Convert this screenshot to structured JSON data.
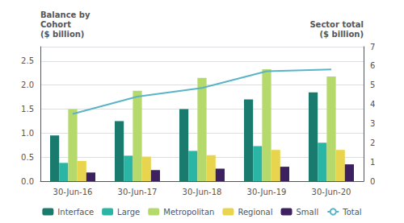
{
  "chart_data": {
    "type": "bar",
    "categories": [
      "30-Jun-16",
      "30-Jun-17",
      "30-Jun-18",
      "30-Jun-19",
      "30-Jun-20"
    ],
    "series": [
      {
        "name": "Interface",
        "color": "#1a7a6e",
        "values": [
          0.95,
          1.25,
          1.5,
          1.7,
          1.85
        ]
      },
      {
        "name": "Large",
        "color": "#2ab5a5",
        "values": [
          0.38,
          0.53,
          0.63,
          0.73,
          0.8
        ]
      },
      {
        "name": "Metropolitan",
        "color": "#b5d96b",
        "values": [
          1.5,
          1.88,
          2.15,
          2.33,
          2.18
        ]
      },
      {
        "name": "Regional",
        "color": "#e8d44d",
        "values": [
          0.42,
          0.51,
          0.54,
          0.65,
          0.65
        ]
      },
      {
        "name": "Small",
        "color": "#3d2060",
        "values": [
          0.18,
          0.23,
          0.26,
          0.3,
          0.35
        ]
      },
      {
        "name": "Total",
        "color": "#5ab4c8",
        "type": "line",
        "axis": "y2",
        "values": [
          3.5,
          4.4,
          4.85,
          5.72,
          5.82
        ]
      }
    ],
    "ylabel": "Balance by\nCohort\n($ billion)",
    "y2label": "Sector total\n($ billion)",
    "ylim": [
      0.0,
      2.8
    ],
    "yticks": [
      {
        "value": 0.0,
        "label": "0.0"
      },
      {
        "value": 0.5,
        "label": "0.5"
      },
      {
        "value": 1.0,
        "label": "1.0"
      },
      {
        "value": 1.5,
        "label": "1.5"
      },
      {
        "value": 2.0,
        "label": "2.0"
      },
      {
        "value": 2.5,
        "label": "2.5"
      }
    ],
    "y2lim": [
      0.0,
      7.0
    ],
    "y2ticks": [
      0,
      1,
      2,
      3,
      4,
      5,
      6,
      7
    ],
    "grid": true,
    "legend": "bottom"
  }
}
